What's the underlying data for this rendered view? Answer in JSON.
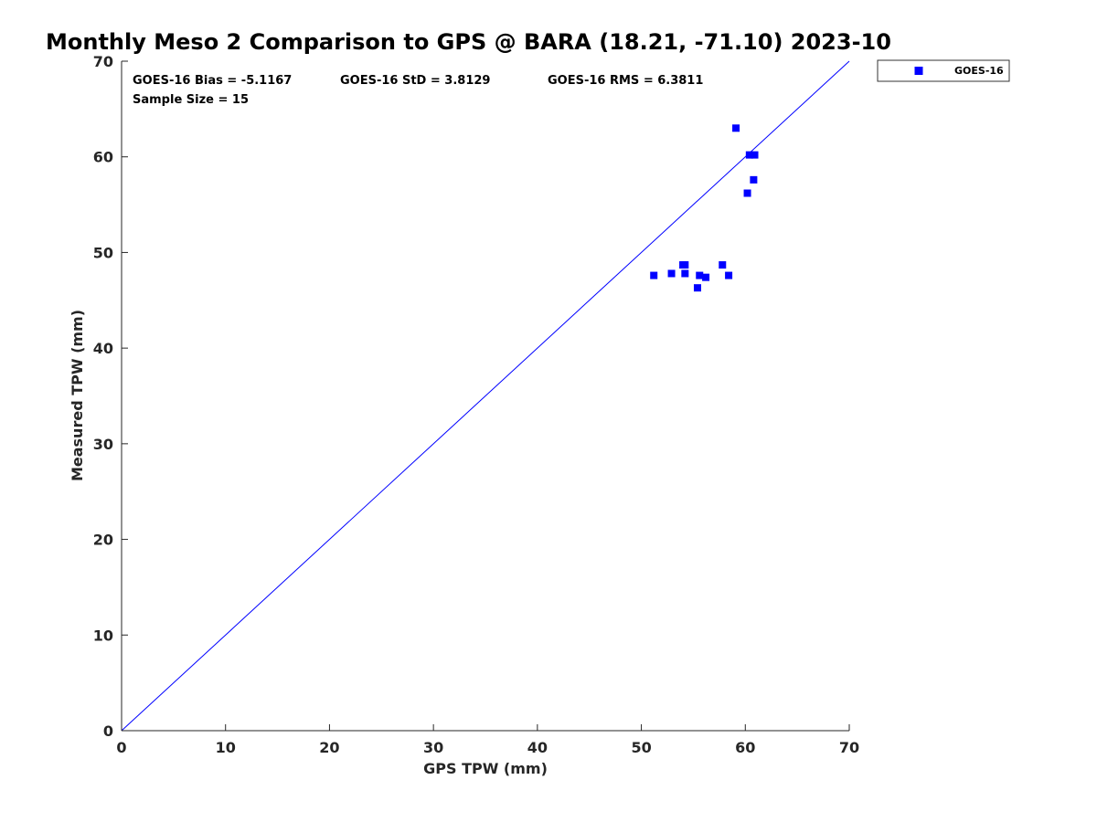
{
  "chart_data": {
    "type": "scatter",
    "title": "Monthly Meso 2 Comparison to GPS @ BARA (18.21, -71.10) 2023-10",
    "xlabel": "GPS TPW (mm)",
    "ylabel": "Measured TPW (mm)",
    "xlim": [
      0,
      70
    ],
    "ylim": [
      0,
      70
    ],
    "xticks": [
      "0",
      "10",
      "20",
      "30",
      "40",
      "50",
      "60",
      "70"
    ],
    "yticks": [
      "0",
      "10",
      "20",
      "30",
      "40",
      "50",
      "60",
      "70"
    ],
    "grid": false,
    "legend_position": "outside-top-right",
    "reference_line": {
      "type": "one-to-one",
      "from": [
        0,
        0
      ],
      "to": [
        70,
        70
      ],
      "color": "#0000ff"
    },
    "series": [
      {
        "name": "GOES-16",
        "color": "#0000ff",
        "marker": "square",
        "points": [
          {
            "x": 51.2,
            "y": 47.6
          },
          {
            "x": 52.9,
            "y": 47.8
          },
          {
            "x": 54.0,
            "y": 48.7
          },
          {
            "x": 54.2,
            "y": 48.7
          },
          {
            "x": 54.2,
            "y": 47.8
          },
          {
            "x": 55.4,
            "y": 46.3
          },
          {
            "x": 55.6,
            "y": 47.6
          },
          {
            "x": 56.2,
            "y": 47.4
          },
          {
            "x": 57.8,
            "y": 48.7
          },
          {
            "x": 58.4,
            "y": 47.6
          },
          {
            "x": 59.1,
            "y": 63.0
          },
          {
            "x": 60.2,
            "y": 56.2
          },
          {
            "x": 60.4,
            "y": 60.2
          },
          {
            "x": 60.8,
            "y": 57.6
          },
          {
            "x": 60.9,
            "y": 60.2
          }
        ]
      }
    ],
    "annotations": [
      "GOES-16 Bias = -5.1167",
      "GOES-16 StD = 3.8129",
      "GOES-16 RMS = 6.3811",
      "Sample Size = 15"
    ]
  }
}
